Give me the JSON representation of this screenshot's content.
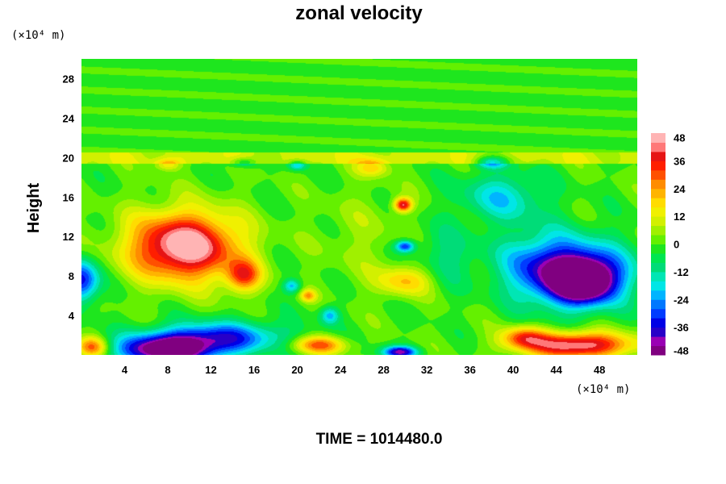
{
  "chart_data": {
    "type": "heatmap",
    "title": "zonal velocity",
    "ylabel": "Height",
    "xlabel": "",
    "x_unit": "(×10⁴ m)",
    "y_unit": "(×10⁴ m)",
    "xlim": [
      0,
      51.5
    ],
    "ylim": [
      0,
      30
    ],
    "x_ticks": [
      "4",
      "8",
      "12",
      "16",
      "20",
      "24",
      "28",
      "32",
      "36",
      "40",
      "44",
      "48"
    ],
    "y_ticks": [
      "4",
      "8",
      "12",
      "16",
      "20",
      "24",
      "28"
    ],
    "colorbar": {
      "range": [
        -48,
        48
      ],
      "step": 4,
      "ticks": [
        "48",
        "36",
        "24",
        "12",
        "0",
        "-12",
        "-24",
        "-36",
        "-48"
      ],
      "colors": [
        "#800080",
        "#9a00b4",
        "#2800c8",
        "#0000e6",
        "#003cff",
        "#0078ff",
        "#00b4ff",
        "#00e6e6",
        "#00e6b4",
        "#00dc78",
        "#00e650",
        "#1ee61e",
        "#64f000",
        "#a0f000",
        "#d2f000",
        "#f0f000",
        "#ffdc00",
        "#ffb400",
        "#ff8c00",
        "#ff5000",
        "#ff1e00",
        "#e61414",
        "#ff7878",
        "#ffb4b4"
      ]
    },
    "features": [
      {
        "x": 9.5,
        "y": 11,
        "sx": 5,
        "sy": 3.4,
        "value": 52
      },
      {
        "x": 15,
        "y": 8,
        "sx": 1.6,
        "sy": 1.6,
        "value": 30
      },
      {
        "x": 8,
        "y": 0.5,
        "sx": 4.5,
        "sy": 1.5,
        "value": -52
      },
      {
        "x": 13,
        "y": 1.8,
        "sx": 6,
        "sy": 1.6,
        "value": -30
      },
      {
        "x": 0,
        "y": 7.5,
        "sx": 1.6,
        "sy": 2.2,
        "value": -36
      },
      {
        "x": 1,
        "y": 0.8,
        "sx": 1.4,
        "sy": 1,
        "value": 30
      },
      {
        "x": 46.5,
        "y": 7.5,
        "sx": 3,
        "sy": 2.2,
        "value": -50
      },
      {
        "x": 46,
        "y": 8.5,
        "sx": 5,
        "sy": 3.5,
        "value": -30
      },
      {
        "x": 42,
        "y": 9,
        "sx": 3.5,
        "sy": 3.5,
        "value": -18
      },
      {
        "x": 46,
        "y": 1,
        "sx": 5,
        "sy": 1.3,
        "value": 46
      },
      {
        "x": 41,
        "y": 1.8,
        "sx": 2,
        "sy": 1.1,
        "value": 26
      },
      {
        "x": 22,
        "y": 1,
        "sx": 2.5,
        "sy": 0.9,
        "value": 30
      },
      {
        "x": 29.5,
        "y": 0.3,
        "sx": 1.6,
        "sy": 0.6,
        "value": -40
      },
      {
        "x": 30,
        "y": 7.5,
        "sx": 2.5,
        "sy": 1.5,
        "value": 20
      },
      {
        "x": 29.8,
        "y": 15.2,
        "sx": 0.8,
        "sy": 0.7,
        "value": 40
      },
      {
        "x": 30,
        "y": 11,
        "sx": 0.9,
        "sy": 0.6,
        "value": -32
      },
      {
        "x": 27,
        "y": 19,
        "sx": 1.5,
        "sy": 0.9,
        "value": 18
      },
      {
        "x": 8,
        "y": 19.3,
        "sx": 1.2,
        "sy": 0.6,
        "value": 16
      },
      {
        "x": 15,
        "y": 19.5,
        "sx": 1.2,
        "sy": 0.5,
        "value": -16
      },
      {
        "x": 20,
        "y": 19.2,
        "sx": 0.8,
        "sy": 0.5,
        "value": -20
      },
      {
        "x": 39,
        "y": 16,
        "sx": 4,
        "sy": 2.5,
        "value": -18
      },
      {
        "x": 38,
        "y": 19.5,
        "sx": 1.5,
        "sy": 0.6,
        "value": -22
      },
      {
        "x": 23,
        "y": 4,
        "sx": 0.9,
        "sy": 0.9,
        "value": -22
      },
      {
        "x": 19.5,
        "y": 7,
        "sx": 0.8,
        "sy": 0.7,
        "value": -22
      },
      {
        "x": 21,
        "y": 6,
        "sx": 0.7,
        "sy": 0.6,
        "value": 22
      },
      {
        "x": 34,
        "y": 10,
        "sx": 3,
        "sy": 3,
        "value": -10
      },
      {
        "x": 26,
        "y": 12,
        "sx": 4,
        "sy": 5,
        "value": 5
      }
    ],
    "upper_band": {
      "y_from": 20.5,
      "value": -1
    }
  },
  "footer": {
    "time_text": "TIME = 1014480.0"
  }
}
